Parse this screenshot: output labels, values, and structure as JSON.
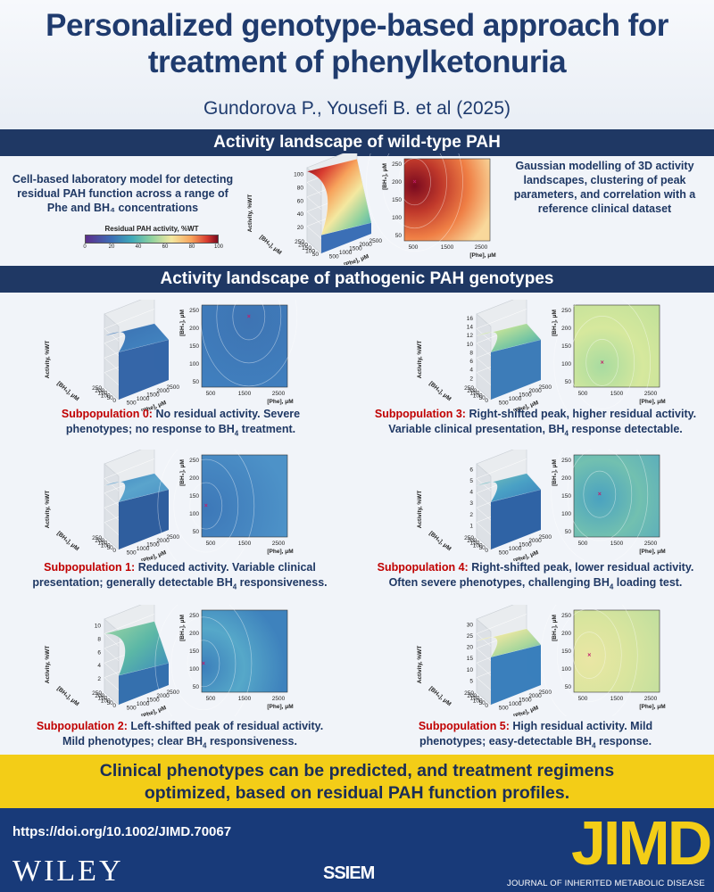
{
  "header": {
    "title_line1": "Personalized genotype-based approach for",
    "title_line2": "treatment of phenylketonuria",
    "authors": "Gundorova P., Yousefi B. et al (2025)"
  },
  "section_wt": {
    "title": "Activity landscape of wild-type PAH",
    "left_text": "Cell-based laboratory model for detecting residual PAH function across a range of Phe and BH₄ concentrations",
    "right_text": "Gaussian modelling of 3D activity landscapes, clustering of peak parameters, and correlation with a reference clinical dataset",
    "colorbar": {
      "title": "Residual PAH activity, %WT",
      "ticks": [
        "0",
        "20",
        "40",
        "60",
        "80",
        "100"
      ]
    }
  },
  "section_path": {
    "title": "Activity landscape of pathogenic PAH genotypes"
  },
  "axes": {
    "z_label": "Activity, %WT",
    "bh4_label": "[BH₄], μM",
    "phe_label": "[Phe], μM"
  },
  "subpopulations": [
    {
      "label": "Subpopulation 0:",
      "text1": "No residual activity. Severe",
      "text2": "phenotypes; no response to BH",
      "sub": "4",
      "text3": " treatment."
    },
    {
      "label": "Subpopulation 1:",
      "text1": "Reduced activity. Variable clinical",
      "text2": "presentation; generally detectable BH",
      "sub": "4",
      "text3": " responsiveness."
    },
    {
      "label": "Subpopulation 2:",
      "text1": "Left-shifted peak of residual activity.",
      "text2": "Mild phenotypes; clear BH",
      "sub": "4",
      "text3": " responsiveness."
    },
    {
      "label": "Subpopulation 3:",
      "text1": "Right-shifted peak, higher residual activity.",
      "text2": "Variable clinical presentation, BH",
      "sub": "4",
      "text3": " response detectable."
    },
    {
      "label": "Subpopulation 4:",
      "text1": "Right-shifted peak, lower residual activity.",
      "text2": "Often severe phenotypes, challenging BH",
      "sub": "4",
      "text3": " loading test."
    },
    {
      "label": "Subpopulation 5:",
      "text1": "High residual activity. Mild",
      "text2": "phenotypes; easy-detectable BH",
      "sub": "4",
      "text3": " response."
    }
  ],
  "panels": [
    {
      "id": "wt",
      "zticks": [
        "20",
        "40",
        "60",
        "80",
        "100"
      ],
      "bh4ticks": [
        "250",
        "200",
        "150",
        "100",
        "50"
      ],
      "phe3dticks": [
        "500",
        "1000",
        "1500",
        "2000",
        "2500"
      ],
      "yticks": [
        "250",
        "200",
        "150",
        "100",
        "50"
      ],
      "xticks": [
        "500",
        "1500",
        "2500"
      ]
    },
    {
      "id": "s0",
      "zticks": [],
      "bh4ticks": [
        "250",
        "200",
        "150",
        "100",
        "50",
        "0"
      ],
      "phe3dticks": [
        "500",
        "1000",
        "1500",
        "2000",
        "2500"
      ],
      "yticks": [
        "250",
        "200",
        "150",
        "100",
        "50"
      ],
      "xticks": [
        "500",
        "1500",
        "2500"
      ]
    },
    {
      "id": "s1",
      "zticks": [],
      "bh4ticks": [
        "250",
        "200",
        "150",
        "100",
        "50",
        "0"
      ],
      "phe3dticks": [
        "500",
        "1000",
        "1500",
        "2000",
        "2500"
      ],
      "yticks": [
        "250",
        "200",
        "150",
        "100",
        "50"
      ],
      "xticks": [
        "500",
        "1500",
        "2500"
      ]
    },
    {
      "id": "s2",
      "zticks": [
        "2",
        "4",
        "6",
        "8",
        "10"
      ],
      "bh4ticks": [
        "250",
        "200",
        "150",
        "100",
        "50",
        "0"
      ],
      "phe3dticks": [
        "500",
        "1000",
        "1500",
        "2000",
        "2500"
      ],
      "yticks": [
        "250",
        "200",
        "150",
        "100",
        "50"
      ],
      "xticks": [
        "500",
        "1500",
        "2500"
      ]
    },
    {
      "id": "s3",
      "zticks": [
        "2",
        "4",
        "6",
        "8",
        "10",
        "12",
        "14",
        "16"
      ],
      "bh4ticks": [
        "250",
        "200",
        "150",
        "100",
        "50",
        "0"
      ],
      "phe3dticks": [
        "500",
        "1000",
        "1500",
        "2000",
        "2500"
      ],
      "yticks": [
        "250",
        "200",
        "150",
        "100",
        "50"
      ],
      "xticks": [
        "500",
        "1500",
        "2500"
      ]
    },
    {
      "id": "s4",
      "zticks": [
        "1",
        "2",
        "3",
        "4",
        "5",
        "6"
      ],
      "bh4ticks": [
        "250",
        "200",
        "150",
        "100",
        "50",
        "0"
      ],
      "phe3dticks": [
        "500",
        "1000",
        "1500",
        "2000",
        "2500"
      ],
      "yticks": [
        "250",
        "200",
        "150",
        "100",
        "50"
      ],
      "xticks": [
        "500",
        "1500",
        "2500"
      ]
    },
    {
      "id": "s5",
      "zticks": [
        "5",
        "10",
        "15",
        "20",
        "25",
        "30"
      ],
      "bh4ticks": [
        "250",
        "200",
        "150",
        "100",
        "50",
        "0"
      ],
      "phe3dticks": [
        "500",
        "1000",
        "1500",
        "2000",
        "2500"
      ],
      "yticks": [
        "250",
        "200",
        "150",
        "100",
        "50"
      ],
      "xticks": [
        "500",
        "1500",
        "2500"
      ]
    }
  ],
  "conclusion": {
    "line1": "Clinical phenotypes can be predicted, and treatment regimens",
    "line2": "optimized, based on residual PAH function profiles."
  },
  "footer": {
    "doi": "https://doi.org/10.1002/JIMD.70067",
    "publisher": "WILEY",
    "society": "SSIEM",
    "journal_abbr": "JIMD",
    "journal_name": "JOURNAL OF INHERITED METABOLIC DISEASE"
  },
  "colors": {
    "navy": "#1f3864",
    "accent_red": "#c00000",
    "yellow": "#f3cd17",
    "footer_blue": "#183a79"
  }
}
